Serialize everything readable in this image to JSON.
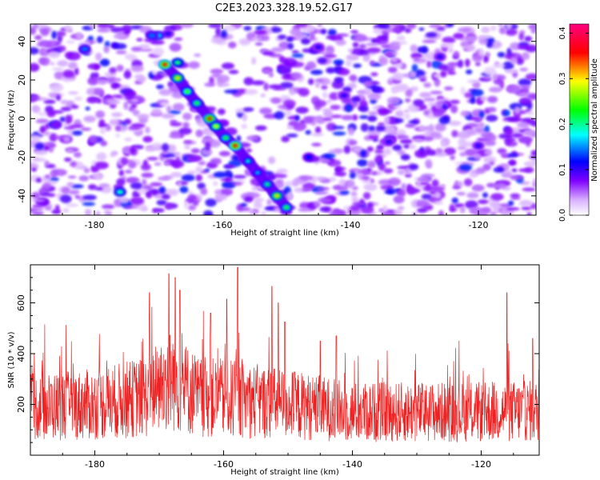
{
  "figure_title": "C2E3.2023.328.19.52.G17",
  "chart_data": [
    {
      "type": "heatmap",
      "title": "C2E3.2023.328.19.52.G17",
      "xlabel": "Height of straight line (km)",
      "ylabel": "Frequency (Hz)",
      "xlim": [
        -190,
        -111
      ],
      "ylim": [
        -50,
        49
      ],
      "xticks": [
        -180,
        -160,
        -140,
        -120
      ],
      "xtick_labels": [
        "-180",
        "-160",
        "-140",
        "-120"
      ],
      "yticks": [
        -40,
        -20,
        0,
        20,
        40
      ],
      "ytick_labels": [
        "-40",
        "-20",
        "0",
        "20",
        "40"
      ],
      "colorbar": {
        "label": "Normalized spectral amplitude",
        "range": [
          0,
          0.42
        ],
        "ticks": [
          0.0,
          0.1,
          0.2,
          0.3,
          0.4
        ],
        "tick_labels": [
          "0.0",
          "0.1",
          "0.2",
          "0.3",
          "0.4"
        ],
        "colormap": [
          "#ffffff",
          "#8000ff",
          "#0000ff",
          "#00ffff",
          "#00ff00",
          "#ffff00",
          "#ff0000",
          "#ff00ff"
        ]
      },
      "ridge": {
        "description_values": "dominant high-amplitude streak",
        "points": [
          {
            "x": -169.0,
            "y": 28,
            "v": 0.36
          },
          {
            "x": -167.0,
            "y": 21,
            "v": 0.3
          },
          {
            "x": -165.5,
            "y": 14,
            "v": 0.24
          },
          {
            "x": -164.0,
            "y": 8,
            "v": 0.22
          },
          {
            "x": -162.0,
            "y": 0,
            "v": 0.34
          },
          {
            "x": -161.0,
            "y": -4,
            "v": 0.28
          },
          {
            "x": -159.5,
            "y": -10,
            "v": 0.22
          },
          {
            "x": -158.0,
            "y": -14,
            "v": 0.36
          },
          {
            "x": -156.0,
            "y": -22,
            "v": 0.18
          },
          {
            "x": -154.5,
            "y": -28,
            "v": 0.16
          },
          {
            "x": -153.0,
            "y": -34,
            "v": 0.2
          },
          {
            "x": -151.5,
            "y": -40,
            "v": 0.3
          },
          {
            "x": -150.0,
            "y": -46,
            "v": 0.22
          }
        ]
      },
      "blobs": [
        {
          "x": -181.5,
          "y": 36,
          "v": 0.14
        },
        {
          "x": -176.0,
          "y": -38,
          "v": 0.18
        },
        {
          "x": -167.0,
          "y": 29,
          "v": 0.2
        },
        {
          "x": -168.5,
          "y": 44,
          "v": 0.1
        },
        {
          "x": -170.0,
          "y": 43,
          "v": 0.16
        },
        {
          "x": -171.0,
          "y": 43,
          "v": 0.14
        },
        {
          "x": -141.0,
          "y": 12,
          "v": 0.1
        },
        {
          "x": -146.5,
          "y": -20,
          "v": 0.12
        },
        {
          "x": -134.0,
          "y": -12,
          "v": 0.1
        },
        {
          "x": -120.0,
          "y": -14,
          "v": 0.1
        },
        {
          "x": -126.0,
          "y": 32,
          "v": 0.1
        },
        {
          "x": -145.0,
          "y": 37,
          "v": 0.1
        }
      ]
    },
    {
      "type": "line",
      "xlabel": "Height of straight line (km)",
      "ylabel": "SNR (10 * v/v)",
      "xlim": [
        -190,
        -111
      ],
      "ylim": [
        0,
        750
      ],
      "xticks": [
        -180,
        -160,
        -140,
        -120
      ],
      "xtick_labels": [
        "-180",
        "-160",
        "-140",
        "-120"
      ],
      "yticks": [
        200,
        400,
        600
      ],
      "ytick_labels": [
        "200",
        "400",
        "600"
      ],
      "series": [
        {
          "color": "#ee2222",
          "baseline_envelope": [
            {
              "x": -190,
              "y": 190
            },
            {
              "x": -180,
              "y": 200
            },
            {
              "x": -172,
              "y": 230
            },
            {
              "x": -168,
              "y": 300
            },
            {
              "x": -164,
              "y": 230
            },
            {
              "x": -158,
              "y": 220
            },
            {
              "x": -150,
              "y": 200
            },
            {
              "x": -140,
              "y": 170
            },
            {
              "x": -130,
              "y": 170
            },
            {
              "x": -120,
              "y": 170
            },
            {
              "x": -111,
              "y": 175
            }
          ],
          "peaks": [
            {
              "x": -171.5,
              "y": 640
            },
            {
              "x": -168.5,
              "y": 715
            },
            {
              "x": -167.5,
              "y": 700
            },
            {
              "x": -166.8,
              "y": 650
            },
            {
              "x": -162.0,
              "y": 560
            },
            {
              "x": -159.5,
              "y": 615
            },
            {
              "x": -157.8,
              "y": 740
            },
            {
              "x": -152.5,
              "y": 665
            },
            {
              "x": -151.5,
              "y": 600
            },
            {
              "x": -150.5,
              "y": 525
            },
            {
              "x": -145.0,
              "y": 450
            },
            {
              "x": -142.5,
              "y": 470
            },
            {
              "x": -116.0,
              "y": 640
            },
            {
              "x": -112.0,
              "y": 460
            }
          ]
        }
      ]
    }
  ]
}
